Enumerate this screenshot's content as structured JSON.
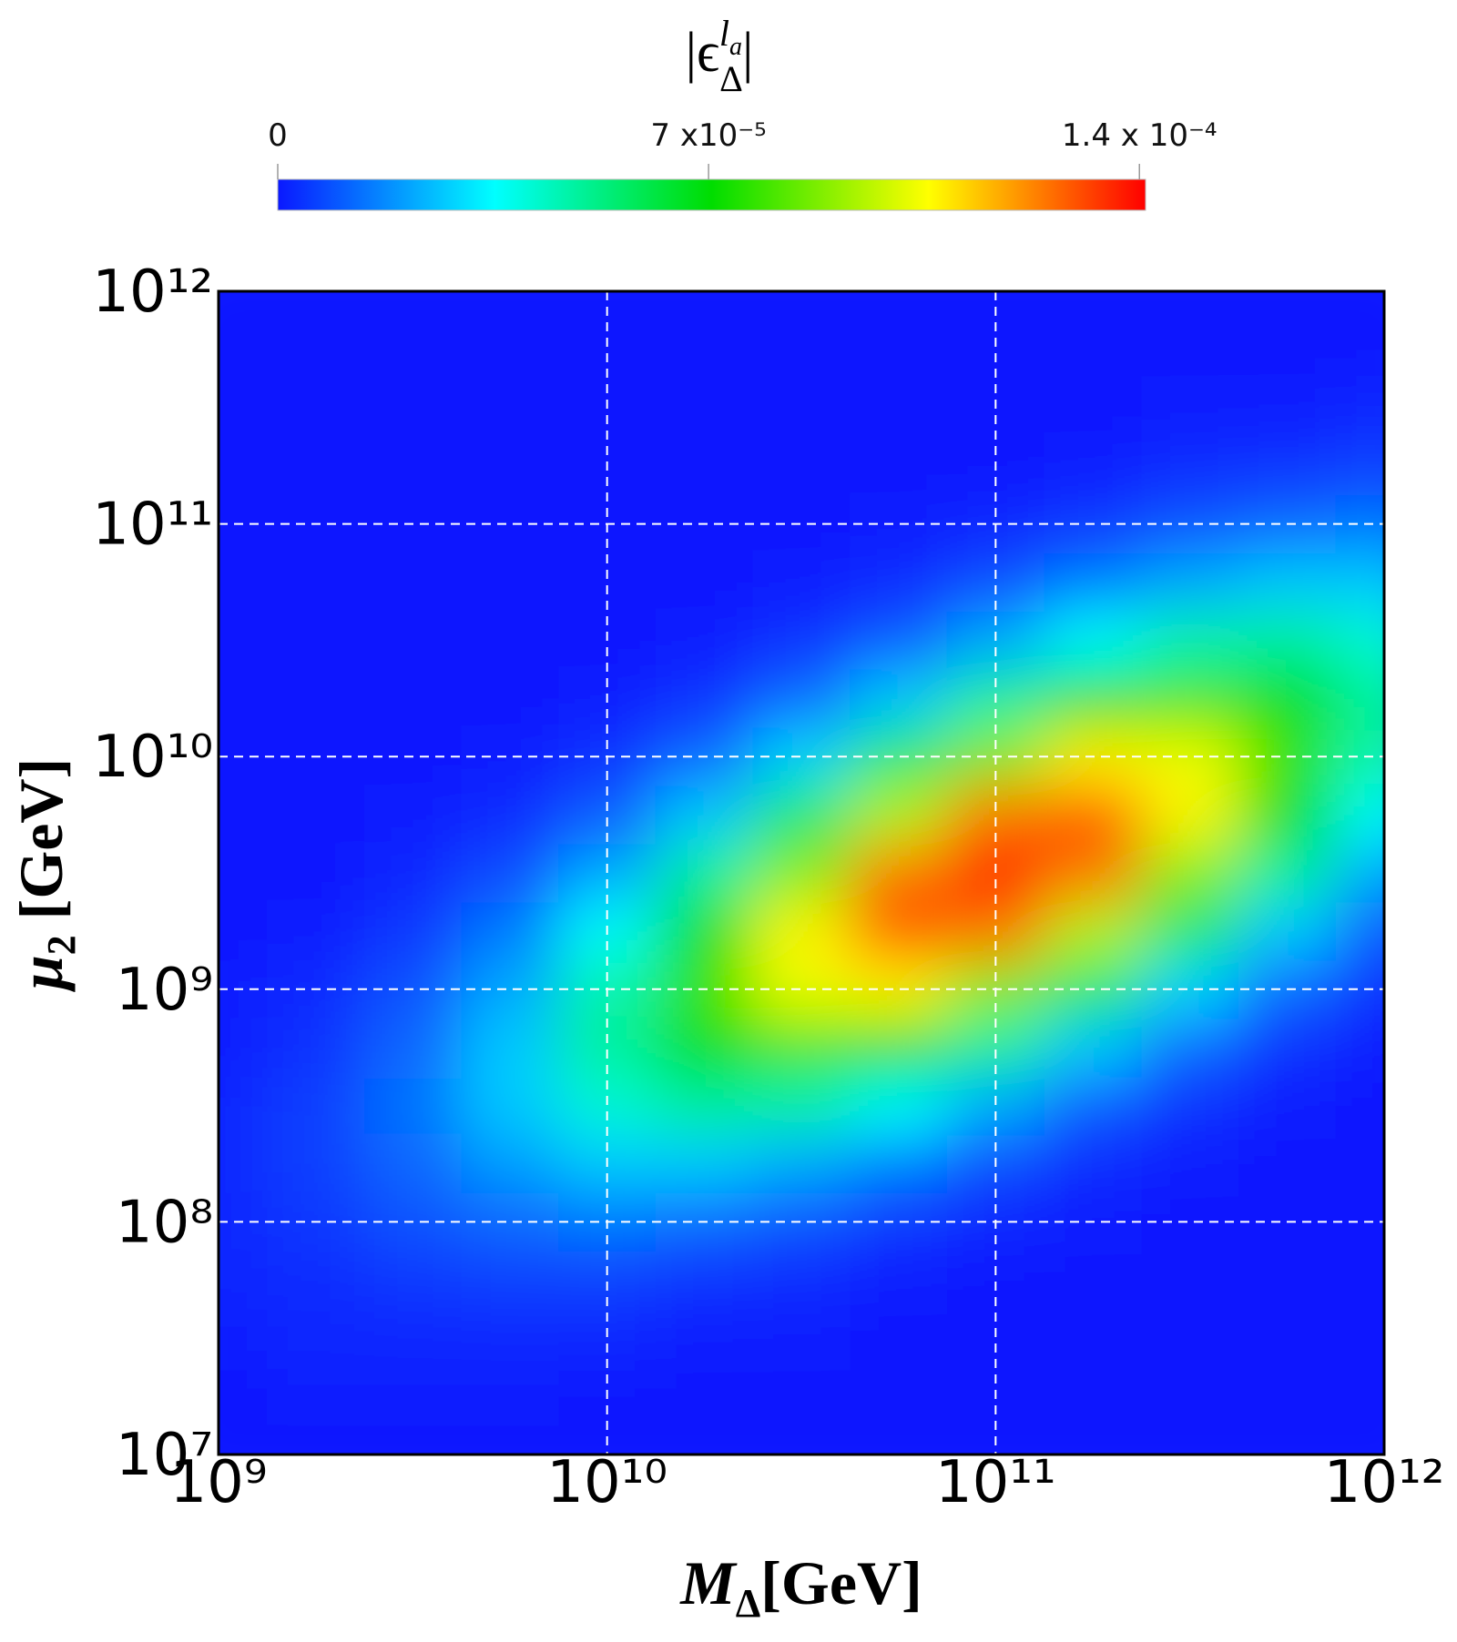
{
  "chart_data": {
    "type": "heatmap",
    "colorbar_label": {
      "open": "|ϵ",
      "sub": "Δ",
      "sup": "l",
      "sup_sub": "a",
      "close": "|"
    },
    "xlabel": {
      "text": "M",
      "sub": "Δ",
      "unit": "[GeV]"
    },
    "ylabel": {
      "text": "μ",
      "sub": "2",
      "unit": " [GeV]"
    },
    "xscale": "log",
    "yscale": "log",
    "grid": true,
    "xlim": [
      1000000000.0,
      1000000000000.0
    ],
    "ylim": [
      10000000.0,
      1000000000000.0
    ],
    "xticks": [
      {
        "value": 1000000000.0,
        "label": "10⁹"
      },
      {
        "value": 10000000000.0,
        "label": "10¹⁰"
      },
      {
        "value": 100000000000.0,
        "label": "10¹¹"
      },
      {
        "value": 1000000000000.0,
        "label": "10¹²"
      }
    ],
    "yticks": [
      {
        "value": 10000000.0,
        "label": "10⁷"
      },
      {
        "value": 100000000.0,
        "label": "10⁸"
      },
      {
        "value": 1000000000.0,
        "label": "10⁹"
      },
      {
        "value": 10000000000.0,
        "label": "10¹⁰"
      },
      {
        "value": 100000000000.0,
        "label": "10¹¹"
      },
      {
        "value": 1000000000000.0,
        "label": "10¹²"
      }
    ],
    "colorlim": [
      0,
      0.000141
    ],
    "colorticks": [
      0,
      {
        "value": 7e-05,
        "label": "7 x10⁻⁵"
      },
      {
        "value": 0.00014,
        "label": "1.4 x 10⁻⁴"
      }
    ],
    "colormap": [
      "#0a18ff",
      "#00ffff",
      "#00dd00",
      "#ffff00",
      "#ff0000"
    ],
    "x": [
      1000000000.0,
      1778000000.0,
      3162000000.0,
      5623000000.0,
      10000000000.0,
      17780000000.0,
      31620000000.0,
      56230000000.0,
      100000000000.0,
      177800000000.0,
      316200000000.0,
      562300000000.0,
      1000000000000.0
    ],
    "y": [
      10000000.0,
      17780000.0,
      31620000.0,
      56230000.0,
      100000000.0,
      177800000.0,
      316200000.0,
      562300000.0,
      1000000000.0,
      1778000000.0,
      3162000000.0,
      5623000000.0,
      10000000000.0,
      17780000000.0,
      31620000000.0,
      56230000000.0,
      100000000000.0,
      177800000000.0,
      316200000000.0,
      562300000000.0,
      1000000000000.0
    ],
    "z": [
      [
        0,
        0,
        0,
        0,
        0,
        0,
        0,
        0,
        0,
        0,
        0,
        0,
        0
      ],
      [
        0,
        1e-06,
        1e-06,
        1e-06,
        0,
        0,
        0,
        0,
        0,
        0,
        0,
        0,
        0
      ],
      [
        1e-06,
        2e-06,
        2e-06,
        2e-06,
        2e-06,
        1e-06,
        1e-06,
        0,
        0,
        0,
        0,
        0,
        0
      ],
      [
        2e-06,
        3e-06,
        5e-06,
        6e-06,
        6e-06,
        4e-06,
        3e-06,
        1e-06,
        0,
        0,
        0,
        0,
        0
      ],
      [
        2e-06,
        5e-06,
        9e-06,
        1.2e-05,
        1.4e-05,
        1.2e-05,
        9e-06,
        5e-06,
        2e-06,
        1e-06,
        0,
        0,
        0
      ],
      [
        2e-06,
        6e-06,
        1.2e-05,
        2e-05,
        2.7e-05,
        2.7e-05,
        2.2e-05,
        1.5e-05,
        8e-06,
        3e-06,
        1e-06,
        0,
        0
      ],
      [
        2e-06,
        6e-06,
        1.4e-05,
        2.7e-05,
        4.1e-05,
        4.9e-05,
        4.7e-05,
        3.6e-05,
        2.2e-05,
        1e-05,
        4e-06,
        1e-06,
        0
      ],
      [
        1e-06,
        4e-06,
        1.2e-05,
        2.7e-05,
        4.9e-05,
        7e-05,
        7.8e-05,
        7e-05,
        4.9e-05,
        2.7e-05,
        1.2e-05,
        4e-06,
        1e-06
      ],
      [
        1e-06,
        3e-06,
        9e-06,
        2.2e-05,
        4.7e-05,
        7.8e-05,
        0.000103,
        0.000107,
        8.8e-05,
        5.7e-05,
        2.9e-05,
        1.2e-05,
        4e-06
      ],
      [
        0,
        1e-06,
        5e-06,
        1.5e-05,
        3.6e-05,
        7e-05,
        0.000107,
        0.00013,
        0.000125,
        9.5e-05,
        5.7e-05,
        2.7e-05,
        1e-05
      ],
      [
        0,
        0,
        2e-06,
        8e-06,
        2.2e-05,
        4.9e-05,
        8.8e-05,
        0.000125,
        0.00014,
        0.000125,
        8.8e-05,
        4.9e-05,
        2.2e-05
      ],
      [
        0,
        0,
        1e-06,
        3e-06,
        1e-05,
        2.7e-05,
        5.7e-05,
        9.5e-05,
        0.000125,
        0.00013,
        0.000107,
        7e-05,
        3.6e-05
      ],
      [
        0,
        0,
        0,
        1e-06,
        4e-06,
        1.2e-05,
        2.9e-05,
        5.7e-05,
        8.8e-05,
        0.000107,
        0.000103,
        7.8e-05,
        4.7e-05
      ],
      [
        0,
        0,
        0,
        0,
        1e-06,
        4e-06,
        1.2e-05,
        2.7e-05,
        4.9e-05,
        7e-05,
        7.8e-05,
        7e-05,
        4.9e-05
      ],
      [
        0,
        0,
        0,
        0,
        0,
        1e-06,
        4e-06,
        1e-05,
        2.2e-05,
        3.6e-05,
        4.7e-05,
        4.9e-05,
        4.1e-05
      ],
      [
        0,
        0,
        0,
        0,
        0,
        0,
        1e-06,
        3e-06,
        8e-06,
        1.5e-05,
        2.2e-05,
        2.7e-05,
        2.7e-05
      ],
      [
        0,
        0,
        0,
        0,
        0,
        0,
        0,
        1e-06,
        2e-06,
        5e-06,
        9e-06,
        1.2e-05,
        1.4e-05
      ],
      [
        0,
        0,
        0,
        0,
        0,
        0,
        0,
        0,
        0,
        1e-06,
        3e-06,
        4e-06,
        6e-06
      ],
      [
        0,
        0,
        0,
        0,
        0,
        0,
        0,
        0,
        0,
        0,
        1e-06,
        1e-06,
        2e-06
      ],
      [
        0,
        0,
        0,
        0,
        0,
        0,
        0,
        0,
        0,
        0,
        0,
        0,
        0
      ],
      [
        0,
        0,
        0,
        0,
        0,
        0,
        0,
        0,
        0,
        0,
        0,
        0,
        0
      ]
    ]
  }
}
